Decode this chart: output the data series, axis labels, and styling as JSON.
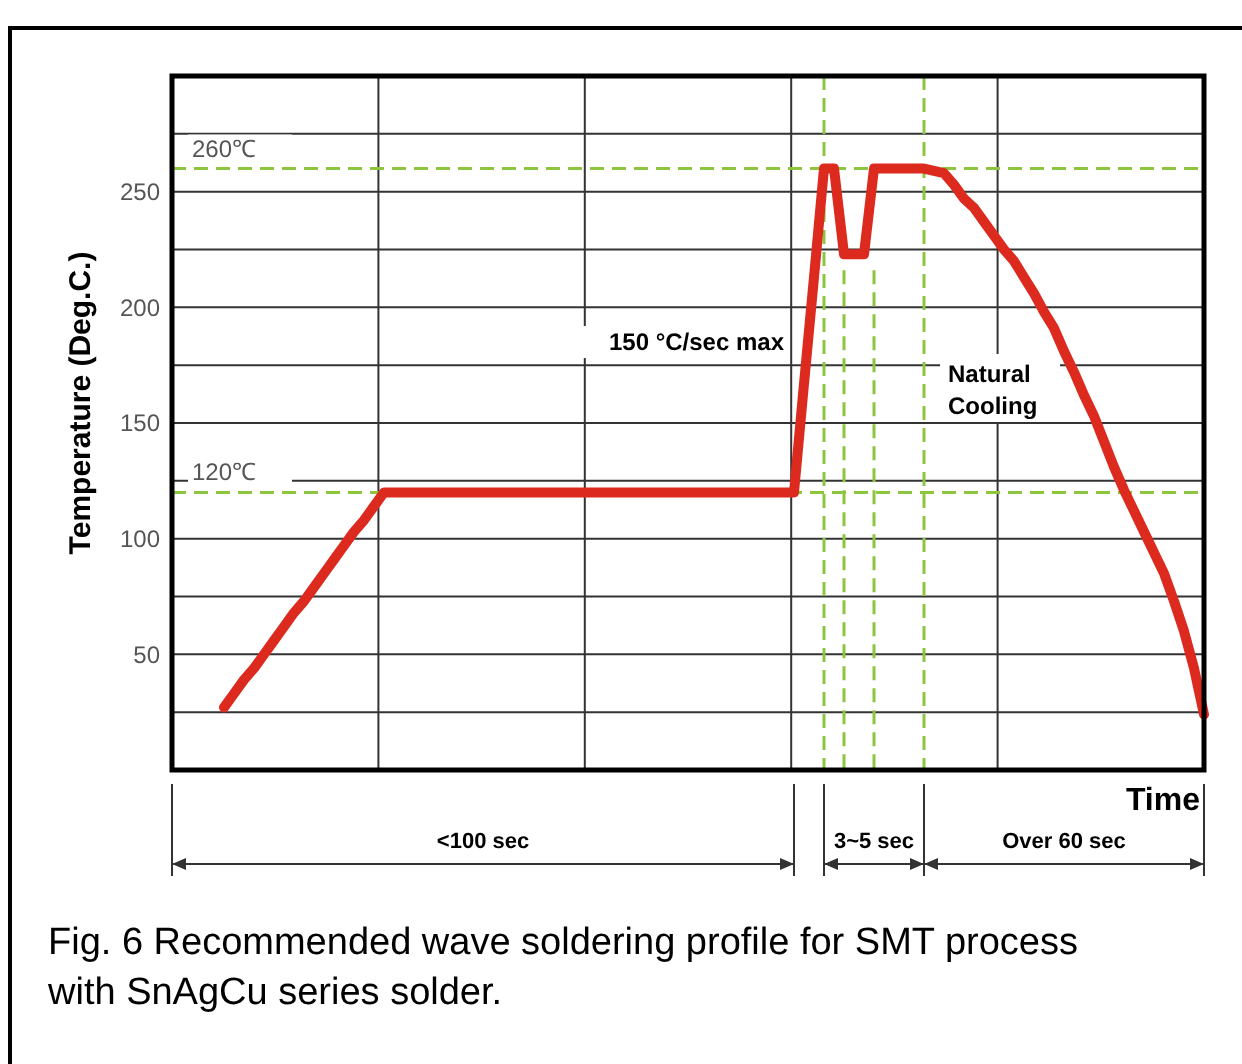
{
  "chart_data": {
    "type": "line",
    "xlabel": "Time",
    "ylabel": "Temperature (Deg.C.)",
    "categories": [
      null,
      null,
      null,
      null,
      null,
      null,
      null,
      null,
      null,
      null,
      null,
      null,
      null,
      null,
      null,
      null,
      null,
      null,
      null,
      null,
      null,
      null,
      null,
      null,
      null,
      null,
      null,
      null,
      null,
      null,
      null,
      null,
      null,
      null,
      null,
      null,
      null,
      null,
      null,
      null,
      null,
      null,
      null,
      null,
      null,
      null,
      null,
      null,
      null,
      null,
      null,
      null,
      null,
      null,
      null,
      null,
      null,
      null,
      null,
      null,
      null,
      null,
      null,
      null,
      null,
      null,
      null,
      null,
      null,
      null,
      null,
      null,
      null,
      null,
      null,
      null,
      null,
      null,
      null,
      null,
      null,
      null,
      null,
      null,
      null,
      null,
      null,
      null,
      null,
      null,
      null,
      null,
      null,
      null,
      null,
      null,
      null,
      null,
      null
    ],
    "values": [
      27,
      33,
      39,
      44,
      50,
      56,
      62,
      68,
      73,
      79,
      85,
      91,
      97,
      103,
      108,
      114,
      120,
      120,
      120,
      120,
      120,
      120,
      120,
      120,
      120,
      120,
      120,
      120,
      120,
      120,
      120,
      120,
      120,
      120,
      120,
      120,
      120,
      120,
      120,
      120,
      120,
      120,
      120,
      120,
      120,
      120,
      120,
      120,
      120,
      120,
      120,
      120,
      120,
      120,
      120,
      120,
      120,
      120,
      167,
      213,
      260,
      260,
      223,
      223,
      223,
      260,
      260,
      260,
      260,
      260,
      260,
      259,
      258,
      253,
      247,
      243,
      237,
      231,
      225,
      220,
      213,
      206,
      198,
      191,
      181,
      172,
      162,
      153,
      142,
      131,
      121,
      112,
      103,
      94,
      85,
      73,
      60,
      44,
      24
    ],
    "color": "#dd2a1e",
    "ylim": [
      0,
      300
    ],
    "yticks": [
      {
        "value": 25,
        "label": null
      },
      50,
      {
        "value": 75,
        "label": null
      },
      100,
      {
        "value": 125,
        "label": null
      },
      150,
      {
        "value": 175,
        "label": null
      },
      200,
      {
        "value": 225,
        "label": null
      },
      250,
      {
        "value": 275,
        "label": null
      }
    ],
    "grid": true,
    "tick_labels": "y",
    "marker": "none",
    "line_style": "solid",
    "ref_lines": [
      {
        "axis": "y",
        "value": 260,
        "label": "260℃",
        "color": "#8cc63f",
        "line_style": "dashed"
      },
      {
        "axis": "y",
        "value": 120,
        "label": "120℃",
        "color": "#8cc63f",
        "line_style": "dashed"
      }
    ],
    "annotations": [
      "150 °C/sec max",
      "Natural Cooling",
      "<100 sec",
      "3~5 sec",
      "Over 60 sec",
      "Fig. 6 Recommended wave soldering profile for SMT process with SnAgCu series solder."
    ]
  }
}
